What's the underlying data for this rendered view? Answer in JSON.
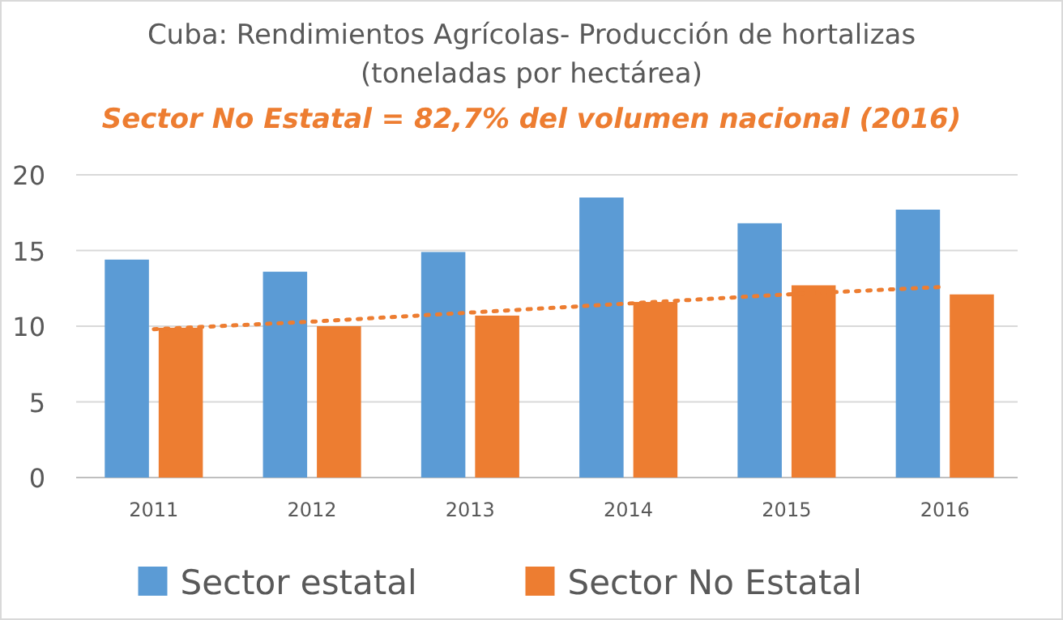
{
  "chart_data": {
    "type": "bar",
    "title": "Cuba: Rendimientos Agrícolas- Producción de hortalizas\n(toneladas por hectárea)",
    "subtitle": "Sector No Estatal = 82,7% del volumen nacional (2016)",
    "categories": [
      "2011",
      "2012",
      "2013",
      "2014",
      "2015",
      "2016"
    ],
    "series": [
      {
        "name": "Sector estatal",
        "color": "#5b9bd5",
        "values": [
          14.4,
          13.6,
          14.9,
          18.5,
          16.8,
          17.7
        ]
      },
      {
        "name": "Sector No Estatal",
        "color": "#ed7d31",
        "values": [
          9.9,
          10.0,
          10.7,
          11.6,
          12.7,
          12.1
        ]
      },
      {
        "type": "line",
        "color": "#ed7d31",
        "line_style": "dotted",
        "marker": "none",
        "values": [
          9.8,
          10.3,
          10.9,
          11.5,
          12.1,
          12.6
        ]
      }
    ],
    "ylim": [
      0,
      20
    ],
    "yticks": [
      0,
      5,
      10,
      15,
      20
    ],
    "grid": "y",
    "legend": "bottom"
  }
}
